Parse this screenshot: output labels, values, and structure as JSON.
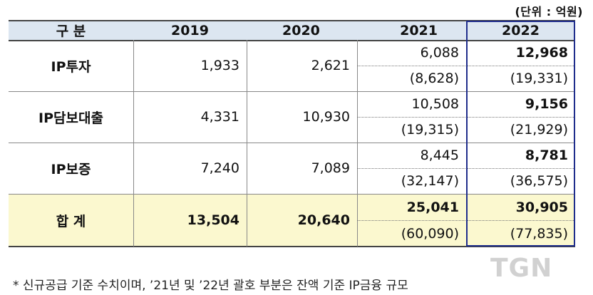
{
  "unit_label": "(단위 : 억원)",
  "header": {
    "category": "구 분",
    "years": [
      "2019",
      "2020",
      "2021",
      "2022"
    ]
  },
  "rows": [
    {
      "label": "IP투자",
      "y2019": "1,933",
      "y2020": "2,621",
      "y2021": "6,088",
      "y2021_paren": "(8,628)",
      "y2022": "12,968",
      "y2022_paren": "(19,331)"
    },
    {
      "label": "IP담보대출",
      "y2019": "4,331",
      "y2020": "10,930",
      "y2021": "10,508",
      "y2021_paren": "(19,315)",
      "y2022": "9,156",
      "y2022_paren": "(21,929)"
    },
    {
      "label": "IP보증",
      "y2019": "7,240",
      "y2020": "7,089",
      "y2021": "8,445",
      "y2021_paren": "(32,147)",
      "y2022": "8,781",
      "y2022_paren": "(36,575)"
    }
  ],
  "total": {
    "label": "합 계",
    "y2019": "13,504",
    "y2020": "20,640",
    "y2021": "25,041",
    "y2021_paren": "(60,090)",
    "y2022": "30,905",
    "y2022_paren": "(77,835)"
  },
  "footnote": "* 신규공급 기준 수치이며, ’21년 및 ’22년 괄호 부분은 잔액 기준 IP금융 규모",
  "watermark": "TGN",
  "colors": {
    "header_bg": "#dce6f1",
    "total_bg": "#fbf8cf",
    "highlight_border": "#1f2d8c"
  }
}
